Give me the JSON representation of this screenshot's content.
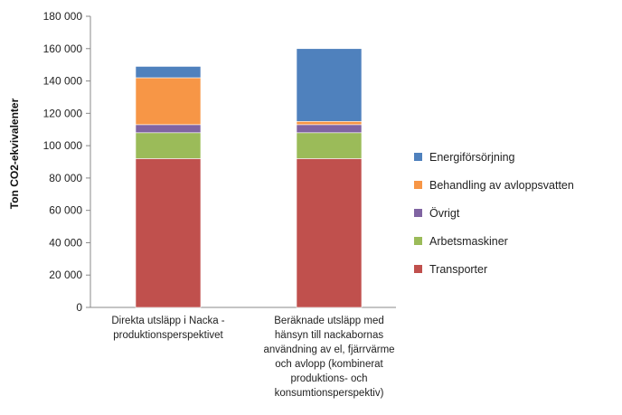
{
  "chart_data": {
    "type": "bar",
    "stacked": true,
    "title": "",
    "xlabel": "",
    "ylabel": "Ton CO2-ekvivalenter",
    "ylim": [
      0,
      180000
    ],
    "yticks": [
      "0",
      "20 000",
      "40 000",
      "60 000",
      "80 000",
      "100 000",
      "120 000",
      "140 000",
      "160 000",
      "180 000"
    ],
    "ytick_values": [
      0,
      20000,
      40000,
      60000,
      80000,
      100000,
      120000,
      140000,
      160000,
      180000
    ],
    "grid": false,
    "legend_position": "right",
    "categories": [
      [
        "Direkta utsläpp i Nacka -",
        "produktionsperspektivet"
      ],
      [
        "Beräknade utsläpp med",
        "hänsyn till nackabornas",
        "användning av el, fjärrvärme",
        "och avlopp (kombinerat",
        "produktions- och",
        "konsumtionsperspektiv)"
      ]
    ],
    "series": [
      {
        "name": "Transporter",
        "color": "#c0504d",
        "values": [
          92000,
          92000
        ]
      },
      {
        "name": "Arbetsmaskiner",
        "color": "#9bbb59",
        "values": [
          16000,
          16000
        ]
      },
      {
        "name": "Övrigt",
        "color": "#8064a2",
        "values": [
          5000,
          5000
        ]
      },
      {
        "name": "Behandling av avloppsvatten",
        "color": "#f79646",
        "values": [
          29000,
          2000
        ]
      },
      {
        "name": "Energiförsörjning",
        "color": "#4f81bd",
        "values": [
          7000,
          45000
        ]
      }
    ],
    "legend_order": [
      "Energiförsörjning",
      "Behandling av avloppsvatten",
      "Övrigt",
      "Arbetsmaskiner",
      "Transporter"
    ]
  }
}
